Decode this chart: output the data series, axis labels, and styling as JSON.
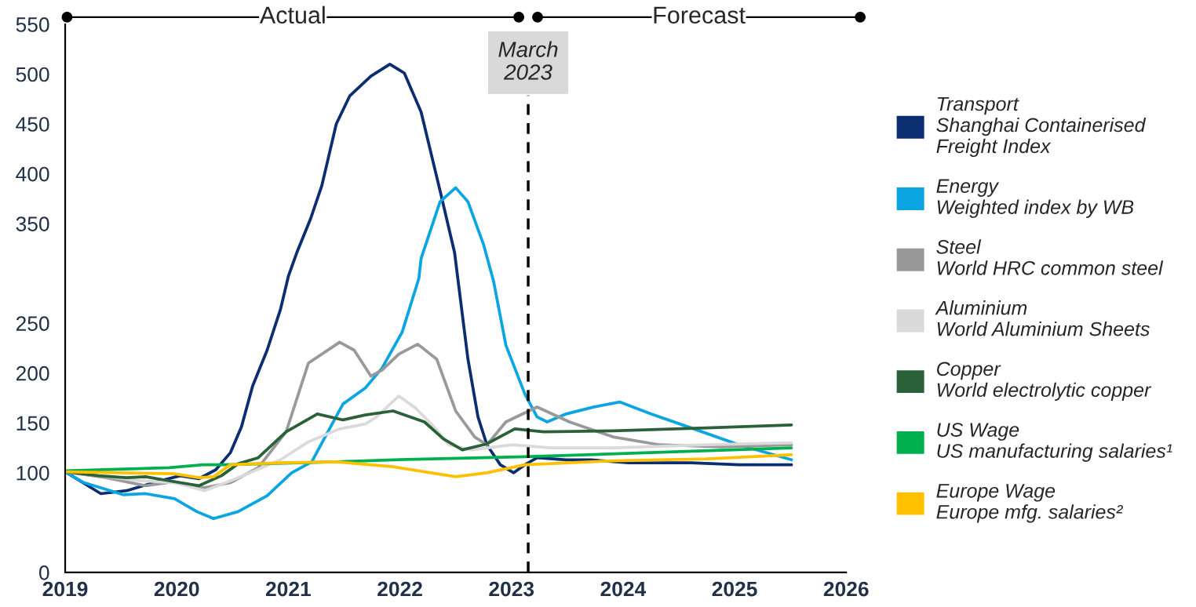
{
  "chart_data": {
    "type": "line",
    "xlim": [
      2019,
      2026
    ],
    "xticks": [
      2019,
      2020,
      2021,
      2022,
      2023,
      2024,
      2025,
      2026
    ],
    "ylim": [
      0,
      550
    ],
    "yticks": [
      0,
      100,
      150,
      200,
      250,
      350,
      400,
      450,
      500,
      550
    ],
    "grid": false,
    "legend": "right",
    "ref_lines": [
      {
        "axis": "x",
        "value": 2023.15,
        "label": "March\n2023",
        "color": "#000000",
        "line_style": "dashed"
      }
    ],
    "annotations": [
      "Actual",
      "Forecast"
    ],
    "series": [
      {
        "name": "Transport\nShanghai Containerised\nFreight Index",
        "color": "#0b2d72",
        "x": [
          2019.0,
          2019.32,
          2019.55,
          2019.82,
          2020.03,
          2020.2,
          2020.35,
          2020.48,
          2020.58,
          2020.68,
          2020.81,
          2020.93,
          2021.0,
          2021.08,
          2021.2,
          2021.3,
          2021.43,
          2021.55,
          2021.74,
          2021.91,
          2022.04,
          2022.19,
          2022.36,
          2022.49,
          2022.61,
          2022.7,
          2022.78,
          2022.9,
          2023.02,
          2023.12,
          2023.23,
          2023.49,
          2023.71,
          2024.05,
          2024.61,
          2025.04,
          2025.51
        ],
        "values": [
          101,
          79,
          82,
          91,
          97,
          94,
          103,
          120,
          146,
          187,
          223,
          264,
          297,
          322,
          355,
          388,
          450,
          478,
          498,
          510,
          501,
          462,
          383,
          321,
          214,
          156,
          128,
          108,
          100,
          108,
          115,
          113,
          113,
          110,
          110,
          108,
          108
        ]
      },
      {
        "name": "Energy\nWeighted index by WB",
        "color": "#0ba5e2",
        "x": [
          2019.0,
          2019.17,
          2019.52,
          2019.72,
          2019.98,
          2020.18,
          2020.33,
          2020.55,
          2020.81,
          2021.03,
          2021.21,
          2021.33,
          2021.49,
          2021.69,
          2021.84,
          2022.02,
          2022.17,
          2022.19,
          2022.36,
          2022.5,
          2022.61,
          2022.75,
          2022.84,
          2022.95,
          2023.12,
          2023.23,
          2023.32,
          2023.49,
          2023.74,
          2023.97,
          2024.25,
          2024.61,
          2025.04,
          2025.51
        ],
        "values": [
          101,
          90,
          78,
          79,
          74,
          61,
          54,
          61,
          77,
          100,
          111,
          136,
          169,
          185,
          205,
          241,
          295,
          315,
          372,
          386,
          372,
          329,
          292,
          228,
          179,
          156,
          151,
          159,
          166,
          171,
          159,
          145,
          128,
          113
        ]
      },
      {
        "name": "Steel\nWorld HRC common steel",
        "color": "#999999",
        "x": [
          2019.0,
          2019.37,
          2019.72,
          2019.98,
          2020.25,
          2020.48,
          2020.73,
          2020.98,
          2021.18,
          2021.46,
          2021.59,
          2021.74,
          2021.84,
          2021.99,
          2022.16,
          2022.33,
          2022.5,
          2022.67,
          2022.78,
          2022.95,
          2023.23,
          2023.52,
          2023.91,
          2024.33,
          2024.89,
          2025.51
        ],
        "values": [
          101,
          95,
          87,
          91,
          85,
          90,
          105,
          141,
          210,
          231,
          223,
          197,
          203,
          219,
          229,
          214,
          162,
          136,
          128,
          151,
          166,
          151,
          136,
          128,
          126,
          128
        ]
      },
      {
        "name": "Aluminium\nWorld Aluminium Sheets",
        "color": "#dadada",
        "x": [
          2019.0,
          2019.67,
          2019.98,
          2020.25,
          2020.55,
          2020.93,
          2021.18,
          2021.46,
          2021.69,
          2021.79,
          2021.99,
          2022.14,
          2022.29,
          2022.44,
          2022.64,
          2023.01,
          2023.35,
          2023.91,
          2024.75,
          2025.51
        ],
        "values": [
          101,
          92,
          90,
          82,
          95,
          113,
          131,
          144,
          149,
          156,
          177,
          165,
          148,
          128,
          123,
          128,
          125,
          125,
          128,
          130
        ]
      },
      {
        "name": "Copper\nWorld electrolytic copper",
        "color": "#2a6139",
        "x": [
          2019.0,
          2019.3,
          2019.55,
          2019.72,
          2019.98,
          2020.2,
          2020.4,
          2020.55,
          2020.73,
          2020.98,
          2021.26,
          2021.49,
          2021.69,
          2021.94,
          2022.22,
          2022.39,
          2022.56,
          2022.78,
          2023.03,
          2023.29,
          2023.91,
          2024.75,
          2025.51
        ],
        "values": [
          101,
          97,
          95,
          96,
          91,
          87,
          97,
          109,
          115,
          141,
          159,
          153,
          158,
          162,
          151,
          134,
          123,
          129,
          144,
          141,
          142,
          145,
          148
        ]
      },
      {
        "name": "US Wage\nUS manufacturing salaries¹",
        "color": "#00b04f",
        "x": [
          2019.0,
          2019.93,
          2020.23,
          2020.43,
          2021.43,
          2021.94,
          2023.12,
          2024.19,
          2025.51
        ],
        "values": [
          102,
          105,
          108,
          108,
          111,
          113,
          116,
          120,
          125
        ]
      },
      {
        "name": "Europe Wage\nEurope mfg. salaries²",
        "color": "#ffc000",
        "x": [
          2019.0,
          2019.98,
          2020.2,
          2020.33,
          2020.48,
          2020.93,
          2021.43,
          2021.94,
          2022.5,
          2022.78,
          2023.12,
          2023.91,
          2024.75,
          2025.51
        ],
        "values": [
          101,
          99,
          95,
          96,
          108,
          110,
          111,
          106,
          96,
          100,
          108,
          112,
          114,
          118
        ]
      }
    ]
  }
}
